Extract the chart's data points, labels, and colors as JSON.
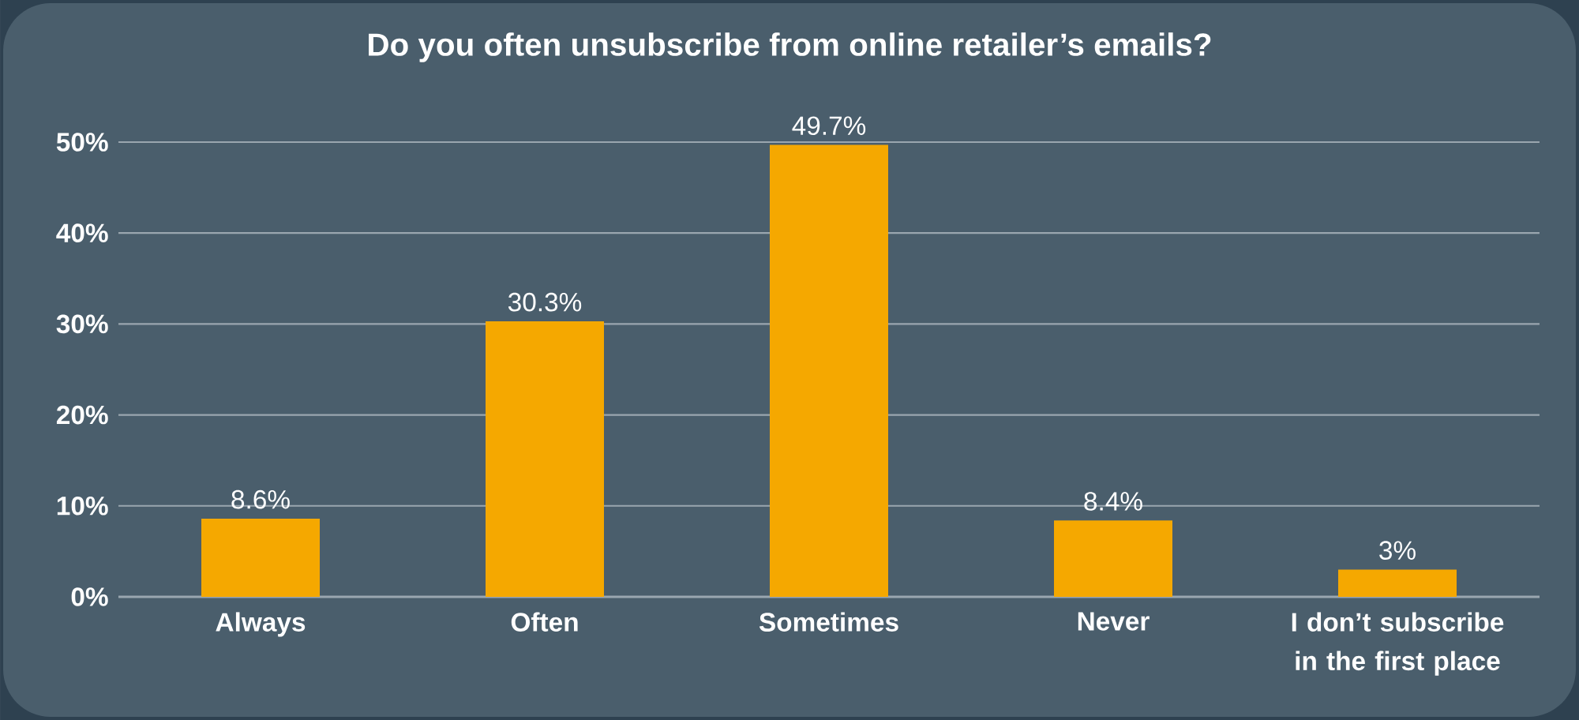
{
  "chart_data": {
    "type": "bar",
    "title": "Do you often unsubscribe from online retailer’s emails?",
    "categories": [
      "Always",
      "Often",
      "Sometimes",
      "Never",
      "I don’t subscribe in the first place"
    ],
    "values": [
      8.6,
      30.3,
      49.7,
      8.4,
      3
    ],
    "value_labels": [
      "8.6%",
      "30.3%",
      "49.7%",
      "8.4%",
      "3%"
    ],
    "color": "#f5a800",
    "ylim": [
      0,
      50
    ],
    "yticks": [
      {
        "value": 0,
        "label": "0%"
      },
      {
        "value": 10,
        "label": "10%"
      },
      {
        "value": 20,
        "label": "20%"
      },
      {
        "value": 30,
        "label": "30%"
      },
      {
        "value": 40,
        "label": "40%"
      },
      {
        "value": 50,
        "label": "50%"
      }
    ],
    "grid": "y"
  }
}
